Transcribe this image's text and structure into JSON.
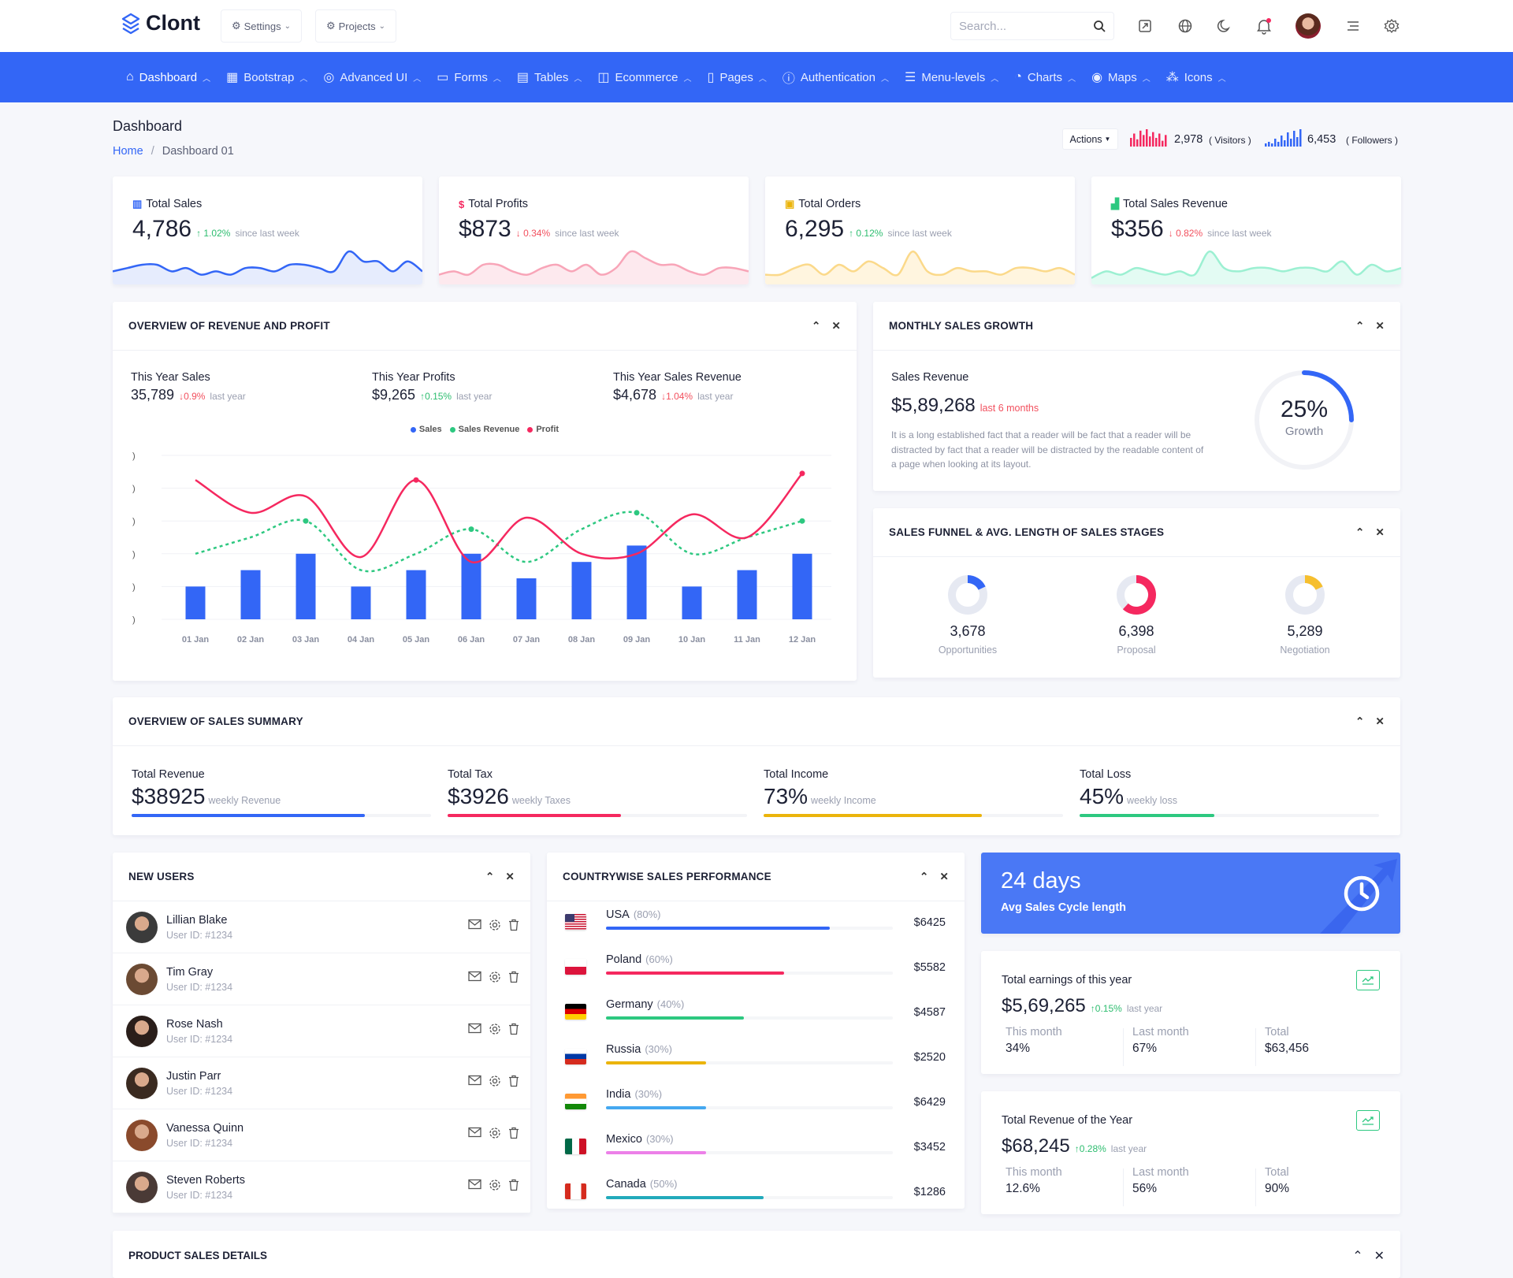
{
  "header": {
    "app_name": "Clont",
    "settings_label": "Settings",
    "projects_label": "Projects",
    "search_placeholder": "Search...",
    "icons": [
      "fullscreen-icon",
      "globe-icon",
      "moon-icon",
      "bell-icon",
      "avatar",
      "menu-icon",
      "gear-icon"
    ]
  },
  "nav": [
    {
      "label": "Dashboard",
      "icon": "home-icon",
      "active": true
    },
    {
      "label": "Bootstrap",
      "icon": "grid-icon"
    },
    {
      "label": "Advanced UI",
      "icon": "aperture-icon"
    },
    {
      "label": "Forms",
      "icon": "folder-icon"
    },
    {
      "label": "Tables",
      "icon": "table-icon"
    },
    {
      "label": "Ecommerce",
      "icon": "shopping-bag-icon"
    },
    {
      "label": "Pages",
      "icon": "file-icon"
    },
    {
      "label": "Authentication",
      "icon": "help-circle-icon"
    },
    {
      "label": "Menu-levels",
      "icon": "list-icon"
    },
    {
      "label": "Charts",
      "icon": "pie-chart-icon"
    },
    {
      "label": "Maps",
      "icon": "map-pin-icon"
    },
    {
      "label": "Icons",
      "icon": "shapes-icon"
    }
  ],
  "page": {
    "title": "Dashboard",
    "breadcrumb_home": "Home",
    "breadcrumb_current": "Dashboard 01",
    "actions_label": "Actions",
    "visitors_value": "2,978",
    "visitors_label": "( Visitors )",
    "followers_value": "6,453",
    "followers_label": "( Followers )",
    "visitors_bars": [
      6,
      9,
      5,
      11,
      8,
      12,
      7,
      10,
      6,
      9,
      4,
      8
    ],
    "followers_bars": [
      2,
      3,
      2,
      5,
      3,
      7,
      4,
      9,
      5,
      10,
      6,
      11
    ]
  },
  "stat_cards": [
    {
      "title": "Total Sales",
      "value": "4,786",
      "change": "1.02%",
      "dir": "up",
      "since": "since last week",
      "color": "#3366f6",
      "fill": "#e6ecfd",
      "icon": "bar-chart-icon",
      "spark": [
        3,
        4,
        5,
        5,
        3,
        4,
        2,
        3,
        2,
        4,
        4,
        3,
        5,
        5,
        4,
        3,
        9,
        6,
        6,
        3,
        6,
        3
      ]
    },
    {
      "title": "Total Profits",
      "value": "$873",
      "change": "0.34%",
      "dir": "down",
      "since": "since last week",
      "color": "#f8a5b8",
      "fill": "#fde9ee",
      "icon": "dollar-icon",
      "spark": [
        2,
        3,
        2,
        5,
        5,
        3,
        2,
        4,
        5,
        3,
        5,
        2,
        4,
        9,
        7,
        5,
        5,
        3,
        2,
        4,
        4,
        3
      ]
    },
    {
      "title": "Total Orders",
      "value": "6,295",
      "change": "0.12%",
      "dir": "up",
      "since": "since last week",
      "color": "#fbd98a",
      "fill": "#fff5df",
      "icon": "cart-icon",
      "spark": [
        2,
        2,
        4,
        5,
        2,
        5,
        3,
        6,
        4,
        2,
        9,
        3,
        2,
        4,
        3,
        3,
        2,
        4,
        4,
        3,
        4,
        2
      ]
    },
    {
      "title": "Total Sales Revenue",
      "value": "$356",
      "change": "0.82%",
      "dir": "down",
      "since": "since last week",
      "color": "#9cf0d2",
      "fill": "#e3fbf3",
      "icon": "signal-icon",
      "spark": [
        1,
        3,
        2,
        4,
        3,
        2,
        3,
        2,
        9,
        4,
        3,
        4,
        4,
        3,
        4,
        4,
        3,
        6,
        2,
        5,
        3,
        4
      ]
    }
  ],
  "overview": {
    "title": "OVERVIEW OF REVENUE AND PROFIT",
    "stats": [
      {
        "label": "This Year Sales",
        "value": "35,789",
        "change": "0.9%",
        "dir": "down",
        "suffix": "last year"
      },
      {
        "label": "This Year Profits",
        "value": "$9,265",
        "change": "0.15%",
        "dir": "up",
        "suffix": "last year"
      },
      {
        "label": "This Year Sales Revenue",
        "value": "$4,678",
        "change": "1.04%",
        "dir": "down",
        "suffix": "last year"
      }
    ]
  },
  "chart_data": {
    "type": "bar",
    "title": "",
    "xlabel": "",
    "ylabel": "",
    "categories": [
      "01 Jan",
      "02 Jan",
      "03 Jan",
      "04 Jan",
      "05 Jan",
      "06 Jan",
      "07 Jan",
      "08 Jan",
      "09 Jan",
      "10 Jan",
      "11 Jan",
      "12 Jan"
    ],
    "ylim": [
      0,
      5
    ],
    "yticks": [
      ")",
      ")",
      ")",
      ")",
      ")",
      ")"
    ],
    "grid": true,
    "legend_position": "top-center",
    "series": [
      {
        "name": "Sales",
        "type": "bar",
        "color": "#3366f6",
        "values": [
          1,
          1.5,
          2,
          1,
          1.5,
          2,
          1.25,
          1.75,
          2.25,
          1,
          1.5,
          2
        ]
      },
      {
        "name": "Sales Revenue",
        "type": "line-dashed",
        "color": "#2dc880",
        "values": [
          2,
          2.5,
          3,
          1.5,
          2,
          2.75,
          1.75,
          2.75,
          3.25,
          2,
          2.5,
          3
        ]
      },
      {
        "name": "Profit",
        "type": "line",
        "color": "#f5285f",
        "values": [
          4.25,
          3.25,
          3.75,
          1.9,
          4.25,
          1.75,
          3.1,
          2,
          2,
          3.2,
          2.5,
          4.45
        ]
      }
    ]
  },
  "monthly": {
    "title": "MONTHLY SALES GROWTH",
    "label": "Sales Revenue",
    "value": "$5,89,268",
    "period": "last 6 months",
    "description": "It is a long established fact that a reader will be fact that a reader will be distracted by fact that a reader will be distracted by the readable content of a page when looking at its layout.",
    "growth_percent": 25,
    "growth_text": "25%",
    "growth_label": "Growth"
  },
  "funnel": {
    "title": "SALES FUNNEL & AVG. LENGTH OF SALES STAGES",
    "items": [
      {
        "value": "3,678",
        "label": "Opportunities",
        "fraction": 0.18,
        "color": "#3366f6"
      },
      {
        "value": "6,398",
        "label": "Proposal",
        "fraction": 0.62,
        "color": "#f5285f"
      },
      {
        "value": "5,289",
        "label": "Negotiation",
        "fraction": 0.18,
        "color": "#f6bf2e"
      }
    ]
  },
  "summary": {
    "title": "OVERVIEW OF SALES SUMMARY",
    "items": [
      {
        "label": "Total Revenue",
        "value": "$38925",
        "note": "weekly Revenue",
        "progress": 0.78,
        "color": "#3366f6"
      },
      {
        "label": "Total Tax",
        "value": "$3926",
        "note": "weekly Taxes",
        "progress": 0.58,
        "color": "#f5285f"
      },
      {
        "label": "Total Income",
        "value": "73%",
        "note": "weekly Income",
        "progress": 0.73,
        "color": "#ebb40b"
      },
      {
        "label": "Total Loss",
        "value": "45%",
        "note": "weekly loss",
        "progress": 0.45,
        "color": "#2dc880"
      }
    ]
  },
  "new_users": {
    "title": "NEW USERS",
    "users": [
      {
        "name": "Lillian Blake",
        "id": "User ID: #1234"
      },
      {
        "name": "Tim Gray",
        "id": "User ID: #1234"
      },
      {
        "name": "Rose Nash",
        "id": "User ID: #1234"
      },
      {
        "name": "Justin Parr",
        "id": "User ID: #1234"
      },
      {
        "name": "Vanessa Quinn",
        "id": "User ID: #1234"
      },
      {
        "name": "Steven Roberts",
        "id": "User ID: #1234"
      }
    ]
  },
  "countries": {
    "title": "COUNTRYWISE SALES PERFORMANCE",
    "items": [
      {
        "name": "USA",
        "percent": "(80%)",
        "amount": "$6425",
        "fill": 0.78,
        "color": "#3366f6",
        "flag": "us"
      },
      {
        "name": "Poland",
        "percent": "(60%)",
        "amount": "$5582",
        "fill": 0.62,
        "color": "#f5285f",
        "flag": "pl"
      },
      {
        "name": "Germany",
        "percent": "(40%)",
        "amount": "$4587",
        "fill": 0.48,
        "color": "#2dc880",
        "flag": "de"
      },
      {
        "name": "Russia",
        "percent": "(30%)",
        "amount": "$2520",
        "fill": 0.35,
        "color": "#ebb40b",
        "flag": "ru"
      },
      {
        "name": "India",
        "percent": "(30%)",
        "amount": "$6429",
        "fill": 0.35,
        "color": "#45a8f0",
        "flag": "in"
      },
      {
        "name": "Mexico",
        "percent": "(30%)",
        "amount": "$3452",
        "fill": 0.35,
        "color": "#ec80e8",
        "flag": "mx"
      },
      {
        "name": "Canada",
        "percent": "(50%)",
        "amount": "$1286",
        "fill": 0.55,
        "color": "#22aabb",
        "flag": "ca"
      }
    ]
  },
  "cycle": {
    "value": "24 days",
    "label": "Avg Sales Cycle length"
  },
  "earnings": {
    "title": "Total earnings of this year",
    "value": "$5,69,265",
    "change": "0.15%",
    "suffix": "last year",
    "cols": [
      {
        "label": "This month",
        "value": "34%"
      },
      {
        "label": "Last month",
        "value": "67%"
      },
      {
        "label": "Total",
        "value": "$63,456"
      }
    ]
  },
  "revenue_year": {
    "title": "Total Revenue of the Year",
    "value": "$68,245",
    "change": "0.28%",
    "suffix": "last year",
    "cols": [
      {
        "label": "This month",
        "value": "12.6%"
      },
      {
        "label": "Last month",
        "value": "56%"
      },
      {
        "label": "Total",
        "value": "90%"
      }
    ]
  },
  "product_sales": {
    "title": "PRODUCT SALES DETAILS"
  }
}
